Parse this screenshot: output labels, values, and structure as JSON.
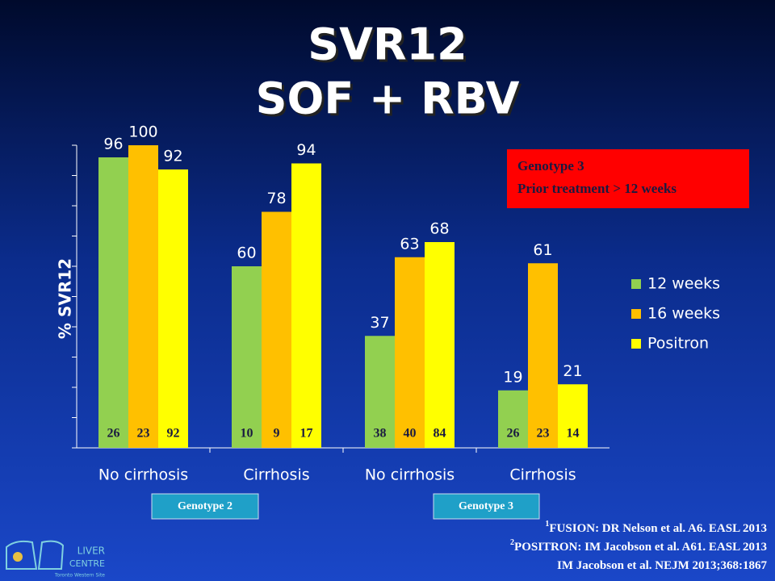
{
  "chart_data": {
    "type": "bar",
    "title": [
      "SVR12",
      "SOF + RBV"
    ],
    "y_label": "% SVR12",
    "categories": [
      "No cirrhosis",
      "Cirrhosis",
      "No cirrhosis",
      "Cirrhosis"
    ],
    "series": [
      {
        "name": "12 weeks",
        "color": "#92d050",
        "values": [
          96,
          60,
          37,
          19
        ],
        "n": [
          26,
          10,
          38,
          26
        ]
      },
      {
        "name": "16 weeks",
        "color": "#ffc000",
        "values": [
          100,
          78,
          63,
          61
        ],
        "n": [
          23,
          9,
          40,
          23
        ]
      },
      {
        "name": "Positron",
        "color": "#ffff00",
        "values": [
          92,
          94,
          68,
          21
        ],
        "n": [
          92,
          17,
          84,
          14
        ]
      }
    ],
    "ylim": [
      0,
      100
    ],
    "yticks": [
      0,
      10,
      20,
      30,
      40,
      50,
      60,
      70,
      80,
      90,
      100
    ],
    "legend": "right",
    "annotation": [
      "Genotype 3",
      "Prior treatment > 12 weeks"
    ],
    "group_labels": [
      "Genotype 2",
      "Genotype 3"
    ],
    "references": [
      {
        "sup": "1",
        "text": "FUSION: DR Nelson et al. A6. EASL 2013"
      },
      {
        "sup": "2",
        "text": "POSITRON: IM Jacobson et al. A61. EASL 2013"
      },
      {
        "text": "IM Jacobson et al. NEJM 2013;368:1867"
      }
    ],
    "logo": [
      "LIVER",
      "CENTRE",
      "Toronto Western Site"
    ]
  }
}
